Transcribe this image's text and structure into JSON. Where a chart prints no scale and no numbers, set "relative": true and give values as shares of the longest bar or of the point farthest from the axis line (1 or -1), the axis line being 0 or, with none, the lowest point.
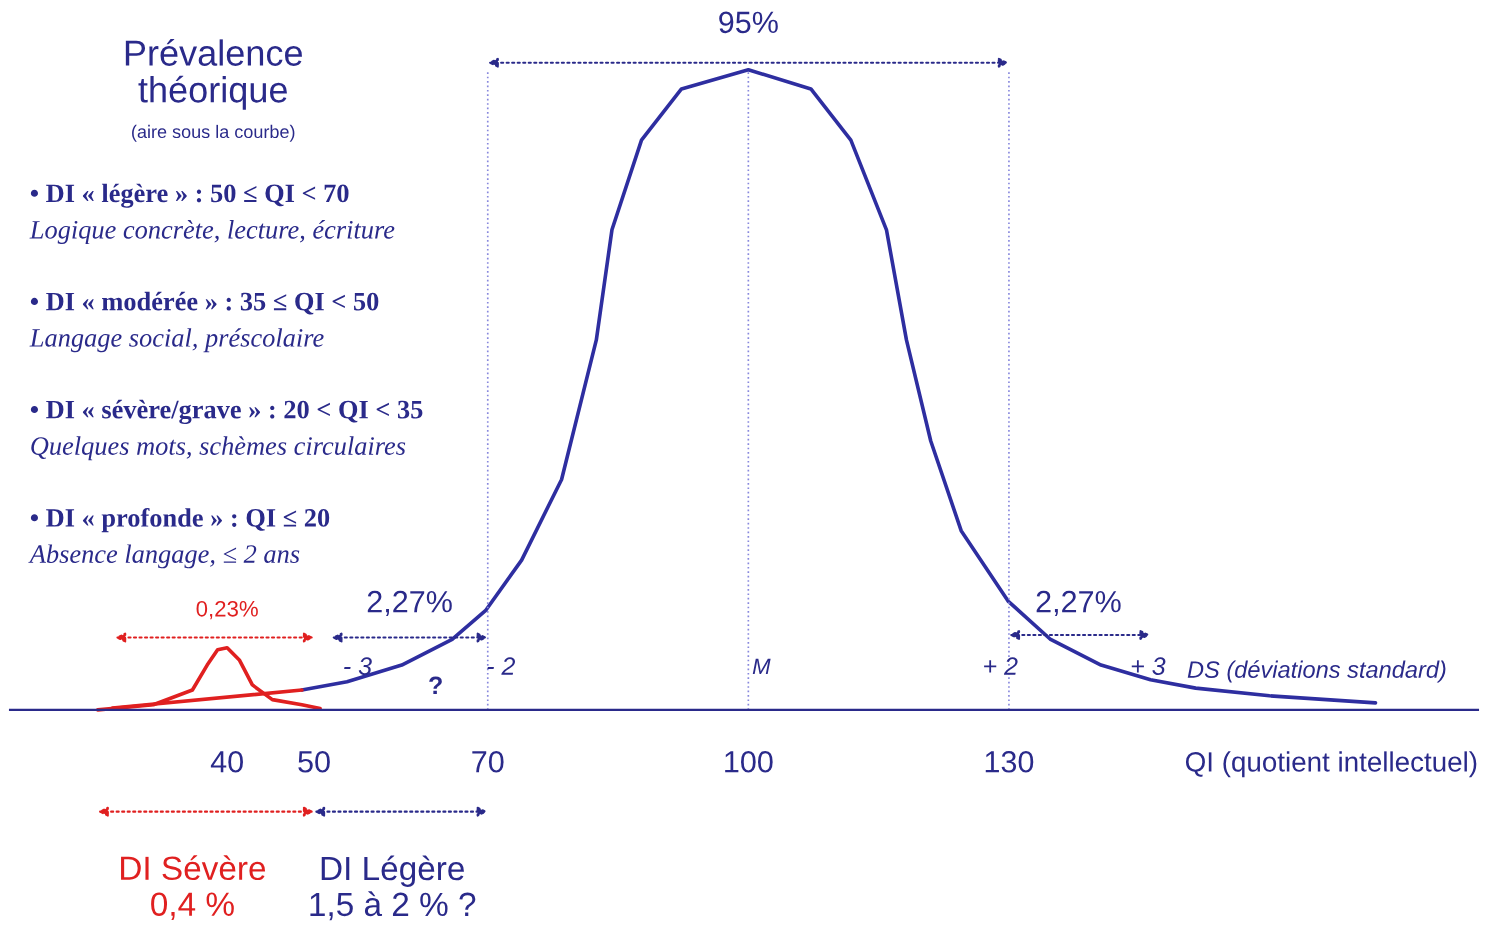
{
  "chart_data": {
    "type": "line",
    "relative": true,
    "title": "Prévalence\nthéorique",
    "subtitle": "(aire sous la courbe)",
    "xlabel": "QI (quotient intellectuel)",
    "x": [
      48.6,
      53.8,
      60.1,
      65.9,
      69.8,
      73.9,
      78.5,
      82.5,
      84.3,
      87.7,
      92.3,
      100,
      107.2,
      111.8,
      115.9,
      118.2,
      121,
      124.5,
      129.9,
      134.8,
      140.6,
      146.3,
      151.5,
      160,
      172.2
    ],
    "xlim": [
      15,
      184
    ],
    "xticks": [
      40,
      50,
      {
        "value": 70,
        "label": "70"
      },
      100,
      130
    ],
    "series": [
      {
        "color": "#2e2ea0",
        "values": [
          0.031,
          0.044,
          0.07,
          0.11,
          0.156,
          0.234,
          0.36,
          0.578,
          0.75,
          0.89,
          0.97,
          1,
          0.97,
          0.89,
          0.75,
          0.578,
          0.42,
          0.28,
          0.17,
          0.11,
          0.07,
          0.047,
          0.034,
          0.022,
          0.011
        ]
      },
      {
        "color": "#e02020",
        "x": [
          25.1,
          31.5,
          36,
          37.7,
          38.9,
          40,
          41.4,
          42.9,
          45.2,
          48.6,
          50.7
        ],
        "values": [
          0,
          0.008,
          0.031,
          0.07,
          0.094,
          0.097,
          0.078,
          0.039,
          0.016,
          0.008,
          0.002
        ]
      },
      {
        "color": "#e02020",
        "x": [
          26.8,
          48.6
        ],
        "values": [
          0.003,
          0.031
        ]
      }
    ],
    "ref_lines": [
      {
        "axis": "x",
        "value": 70,
        "color": "#8888dd",
        "line_style": "dotted"
      },
      {
        "axis": "x",
        "value": 100,
        "color": "#8888dd",
        "line_style": "dotted"
      },
      {
        "axis": "x",
        "value": 130,
        "color": "#8888dd",
        "line_style": "dotted"
      }
    ],
    "grid": false,
    "legend": false,
    "marker": "none",
    "line_style": "solid",
    "annotations": [
      "95%",
      "2,27%",
      "2,27%",
      "0,23%",
      "- 3",
      "- 2",
      "M",
      "+ 2",
      "+ 3",
      "DS (déviations standard)",
      "?",
      "DI Sévère\n0,4 %",
      "DI Légère\n1,5 à 2 % ?",
      "• DI « légère » : 50 ≤ QI < 70",
      "Logique concrète, lecture, écriture",
      "• DI « modérée » : 35 ≤ QI < 50",
      "Langage social, préscolaire",
      "• DI « sévère/grave » : 20 < QI < 35",
      "Quelques mots, schèmes circulaires",
      "• DI « profonde » : QI ≤ 20",
      "Absence langage, ≤ 2 ans"
    ]
  }
}
